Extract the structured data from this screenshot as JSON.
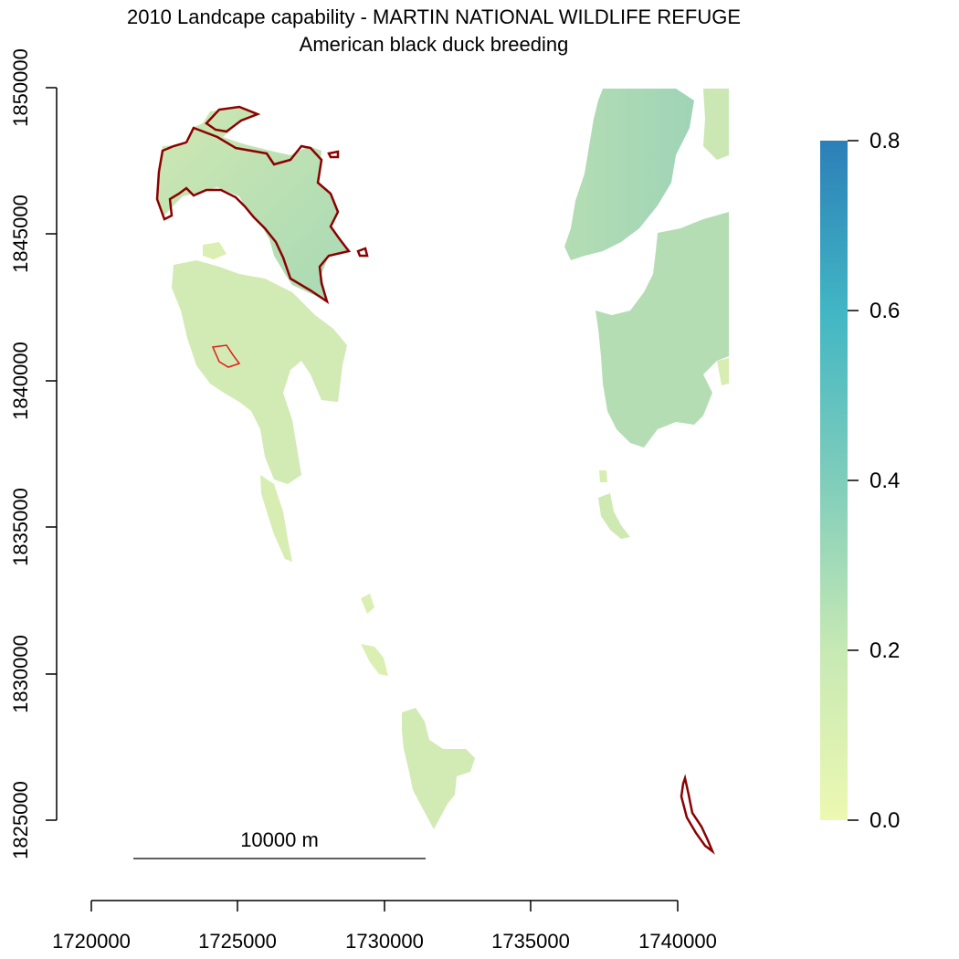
{
  "title": "2010 Landcape capability - MARTIN NATIONAL WILDLIFE REFUGE",
  "subtitle": "American black duck breeding",
  "chart_data": {
    "type": "raster-map",
    "x_axis": {
      "ticks": [
        1720000,
        1725000,
        1730000,
        1735000,
        1740000
      ],
      "tick_labels": [
        "1720000",
        "1725000",
        "1730000",
        "1735000",
        "1740000"
      ],
      "range": [
        1720000,
        1740000
      ]
    },
    "y_axis": {
      "ticks": [
        1825000,
        1830000,
        1835000,
        1840000,
        1845000,
        1850000
      ],
      "tick_labels": [
        "1825000",
        "1830000",
        "1835000",
        "1840000",
        "1845000",
        "1850000"
      ],
      "range": [
        1825000,
        1850000
      ]
    },
    "legend": {
      "type": "continuous",
      "placement": "right",
      "min": 0.0,
      "max": 0.8,
      "ticks": [
        0.0,
        0.2,
        0.4,
        0.6,
        0.8
      ],
      "tick_labels": [
        "0.0",
        "0.2",
        "0.4",
        "0.6",
        "0.8"
      ],
      "colors": [
        "#edf8b1",
        "#c7e9b4",
        "#7fcdbb",
        "#41b6c4",
        "#2c7fb8"
      ]
    },
    "scale_bar": {
      "label": "10000 m",
      "length_m": 10000
    },
    "colors": {
      "land_low": "#e3f0b0",
      "land_mid": "#c2e3b3",
      "land_high": "#a4d8b6",
      "refuge_boundary": "#8b0000",
      "refuge_outline_red": "#e31a1c"
    }
  }
}
